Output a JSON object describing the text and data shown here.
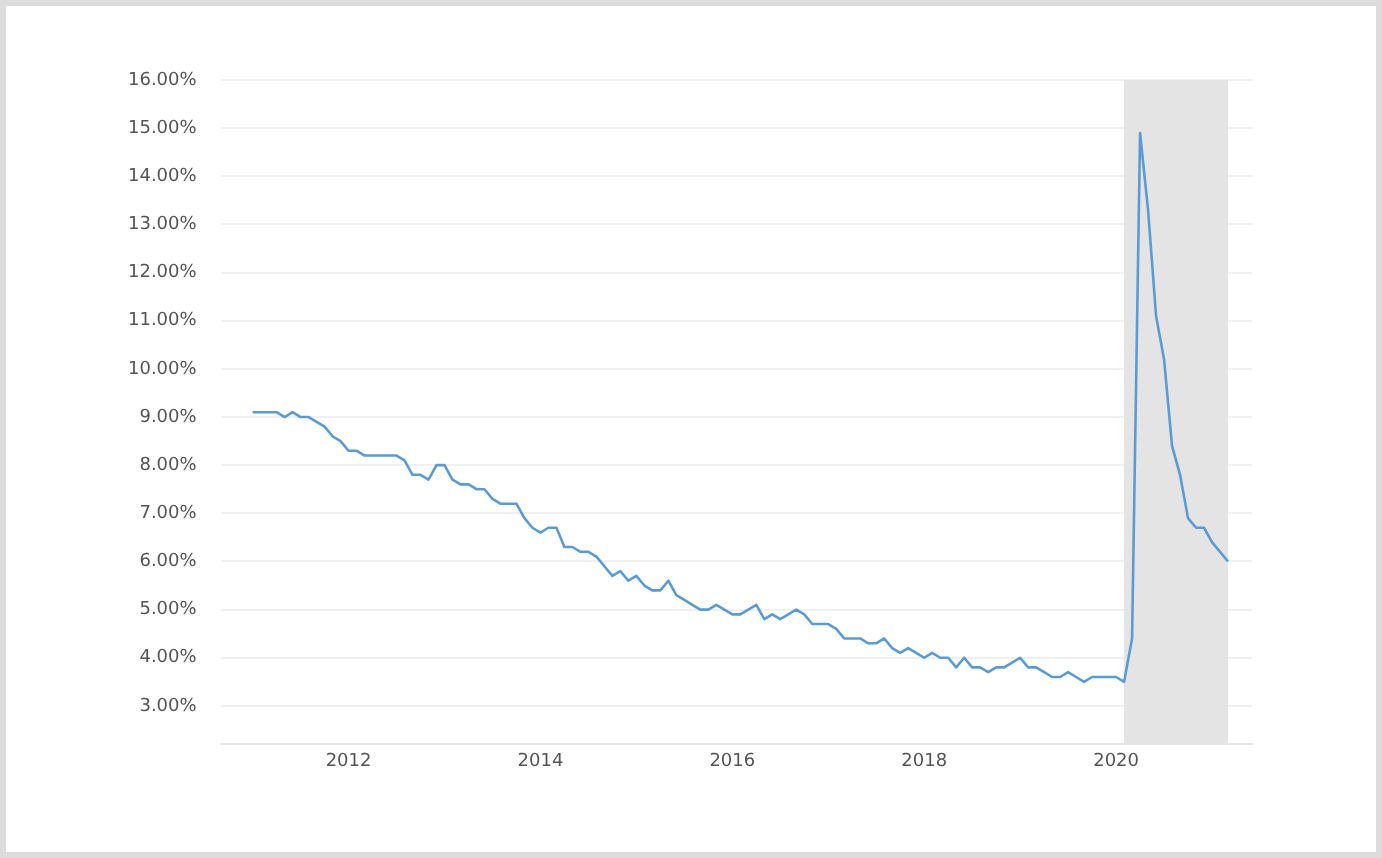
{
  "chart_data": {
    "type": "line",
    "x": [
      "2011-01",
      "2011-02",
      "2011-03",
      "2011-04",
      "2011-05",
      "2011-06",
      "2011-07",
      "2011-08",
      "2011-09",
      "2011-10",
      "2011-11",
      "2011-12",
      "2012-01",
      "2012-02",
      "2012-03",
      "2012-04",
      "2012-05",
      "2012-06",
      "2012-07",
      "2012-08",
      "2012-09",
      "2012-10",
      "2012-11",
      "2012-12",
      "2013-01",
      "2013-02",
      "2013-03",
      "2013-04",
      "2013-05",
      "2013-06",
      "2013-07",
      "2013-08",
      "2013-09",
      "2013-10",
      "2013-11",
      "2013-12",
      "2014-01",
      "2014-02",
      "2014-03",
      "2014-04",
      "2014-05",
      "2014-06",
      "2014-07",
      "2014-08",
      "2014-09",
      "2014-10",
      "2014-11",
      "2014-12",
      "2015-01",
      "2015-02",
      "2015-03",
      "2015-04",
      "2015-05",
      "2015-06",
      "2015-07",
      "2015-08",
      "2015-09",
      "2015-10",
      "2015-11",
      "2015-12",
      "2016-01",
      "2016-02",
      "2016-03",
      "2016-04",
      "2016-05",
      "2016-06",
      "2016-07",
      "2016-08",
      "2016-09",
      "2016-10",
      "2016-11",
      "2016-12",
      "2017-01",
      "2017-02",
      "2017-03",
      "2017-04",
      "2017-05",
      "2017-06",
      "2017-07",
      "2017-08",
      "2017-09",
      "2017-10",
      "2017-11",
      "2017-12",
      "2018-01",
      "2018-02",
      "2018-03",
      "2018-04",
      "2018-05",
      "2018-06",
      "2018-07",
      "2018-08",
      "2018-09",
      "2018-10",
      "2018-11",
      "2018-12",
      "2019-01",
      "2019-02",
      "2019-03",
      "2019-04",
      "2019-05",
      "2019-06",
      "2019-07",
      "2019-08",
      "2019-09",
      "2019-10",
      "2019-11",
      "2019-12",
      "2020-01",
      "2020-02",
      "2020-03",
      "2020-04",
      "2020-05",
      "2020-06",
      "2020-07",
      "2020-08",
      "2020-09",
      "2020-10",
      "2020-11",
      "2020-12",
      "2021-01",
      "2021-02",
      "2021-03"
    ],
    "series": [
      {
        "color": "#5b9bd5",
        "values": [
          9.1,
          9.1,
          9.1,
          9.1,
          9.0,
          9.1,
          9.0,
          9.0,
          8.9,
          8.8,
          8.6,
          8.5,
          8.3,
          8.3,
          8.2,
          8.2,
          8.2,
          8.2,
          8.2,
          8.1,
          7.8,
          7.8,
          7.7,
          8.0,
          8.0,
          7.7,
          7.6,
          7.6,
          7.5,
          7.5,
          7.3,
          7.2,
          7.2,
          7.2,
          6.9,
          6.7,
          6.6,
          6.7,
          6.7,
          6.3,
          6.3,
          6.2,
          6.2,
          6.1,
          5.9,
          5.7,
          5.8,
          5.6,
          5.7,
          5.5,
          5.4,
          5.4,
          5.6,
          5.3,
          5.2,
          5.1,
          5.0,
          5.0,
          5.1,
          5.0,
          4.9,
          4.9,
          5.0,
          5.1,
          4.8,
          4.9,
          4.8,
          4.9,
          5.0,
          4.9,
          4.7,
          4.7,
          4.7,
          4.6,
          4.4,
          4.4,
          4.4,
          4.3,
          4.3,
          4.4,
          4.2,
          4.1,
          4.2,
          4.1,
          4.0,
          4.1,
          4.0,
          4.0,
          3.8,
          4.0,
          3.8,
          3.8,
          3.7,
          3.8,
          3.8,
          3.9,
          4.0,
          3.8,
          3.8,
          3.7,
          3.6,
          3.6,
          3.7,
          3.6,
          3.5,
          3.6,
          3.6,
          3.6,
          3.6,
          3.5,
          4.4,
          14.9,
          13.3,
          11.1,
          10.2,
          8.4,
          7.8,
          6.9,
          6.7,
          6.7,
          6.4,
          6.2,
          6.0
        ]
      }
    ],
    "xlim": [
      "2010-09",
      "2021-06"
    ],
    "xticks": [
      "2012",
      "2014",
      "2016",
      "2018",
      "2020"
    ],
    "ylim": [
      2.2,
      16
    ],
    "yticks": [
      {
        "value": 3,
        "label": "3.00%"
      },
      {
        "value": 4,
        "label": "4.00%"
      },
      {
        "value": 5,
        "label": "5.00%"
      },
      {
        "value": 6,
        "label": "6.00%"
      },
      {
        "value": 7,
        "label": "7.00%"
      },
      {
        "value": 8,
        "label": "8.00%"
      },
      {
        "value": 9,
        "label": "9.00%"
      },
      {
        "value": 10,
        "label": "10.00%"
      },
      {
        "value": 11,
        "label": "11.00%"
      },
      {
        "value": 12,
        "label": "12.00%"
      },
      {
        "value": 13,
        "label": "13.00%"
      },
      {
        "value": 14,
        "label": "14.00%"
      },
      {
        "value": 15,
        "label": "15.00%"
      },
      {
        "value": 16,
        "label": "16.00%"
      }
    ],
    "bands": [
      {
        "axis": "x",
        "from": "2020-02",
        "to": "2021-03",
        "color": "#e4e4e4"
      }
    ],
    "grid": "y",
    "legend": false,
    "marker": "none",
    "line_style": "solid"
  }
}
